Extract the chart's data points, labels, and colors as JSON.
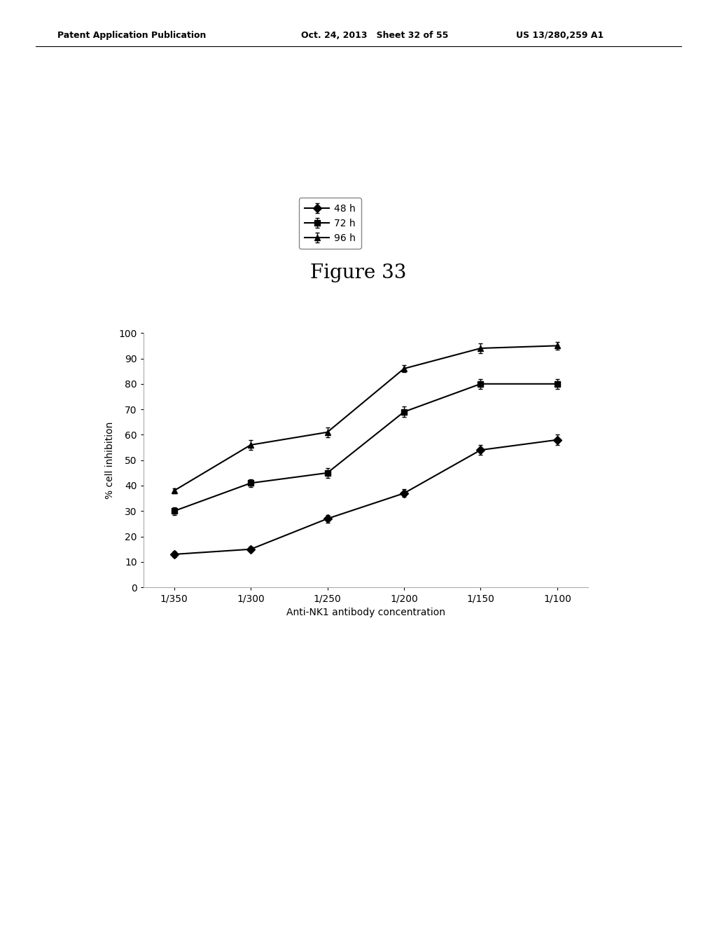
{
  "title": "Figure 33",
  "xlabel": "Anti-NK1 antibody concentration",
  "ylabel": "% cell inhibition",
  "x_labels": [
    "1/350",
    "1/300",
    "1/250",
    "1/200",
    "1/150",
    "1/100"
  ],
  "x_values": [
    0,
    1,
    2,
    3,
    4,
    5
  ],
  "series": [
    {
      "label": "48 h",
      "values": [
        13,
        15,
        27,
        37,
        54,
        58
      ],
      "errors": [
        1,
        1,
        1.5,
        1.5,
        2,
        2
      ],
      "marker": "D",
      "color": "#000000"
    },
    {
      "label": "72 h",
      "values": [
        30,
        41,
        45,
        69,
        80,
        80
      ],
      "errors": [
        1.5,
        1.5,
        2,
        2,
        2,
        2
      ],
      "marker": "s",
      "color": "#000000"
    },
    {
      "label": "96 h",
      "values": [
        38,
        56,
        61,
        86,
        94,
        95
      ],
      "errors": [
        1,
        2,
        2,
        1.5,
        2,
        1.5
      ],
      "marker": "^",
      "color": "#000000"
    }
  ],
  "ylim": [
    0,
    100
  ],
  "yticks": [
    0,
    10,
    20,
    30,
    40,
    50,
    60,
    70,
    80,
    90,
    100
  ],
  "background_color": "#ffffff",
  "title_fontsize": 20,
  "axis_label_fontsize": 10,
  "tick_fontsize": 10,
  "legend_fontsize": 10,
  "header_left": "Patent Application Publication",
  "header_mid": "Oct. 24, 2013   Sheet 32 of 55",
  "header_right": "US 13/280,259 A1",
  "header_fontsize": 9
}
